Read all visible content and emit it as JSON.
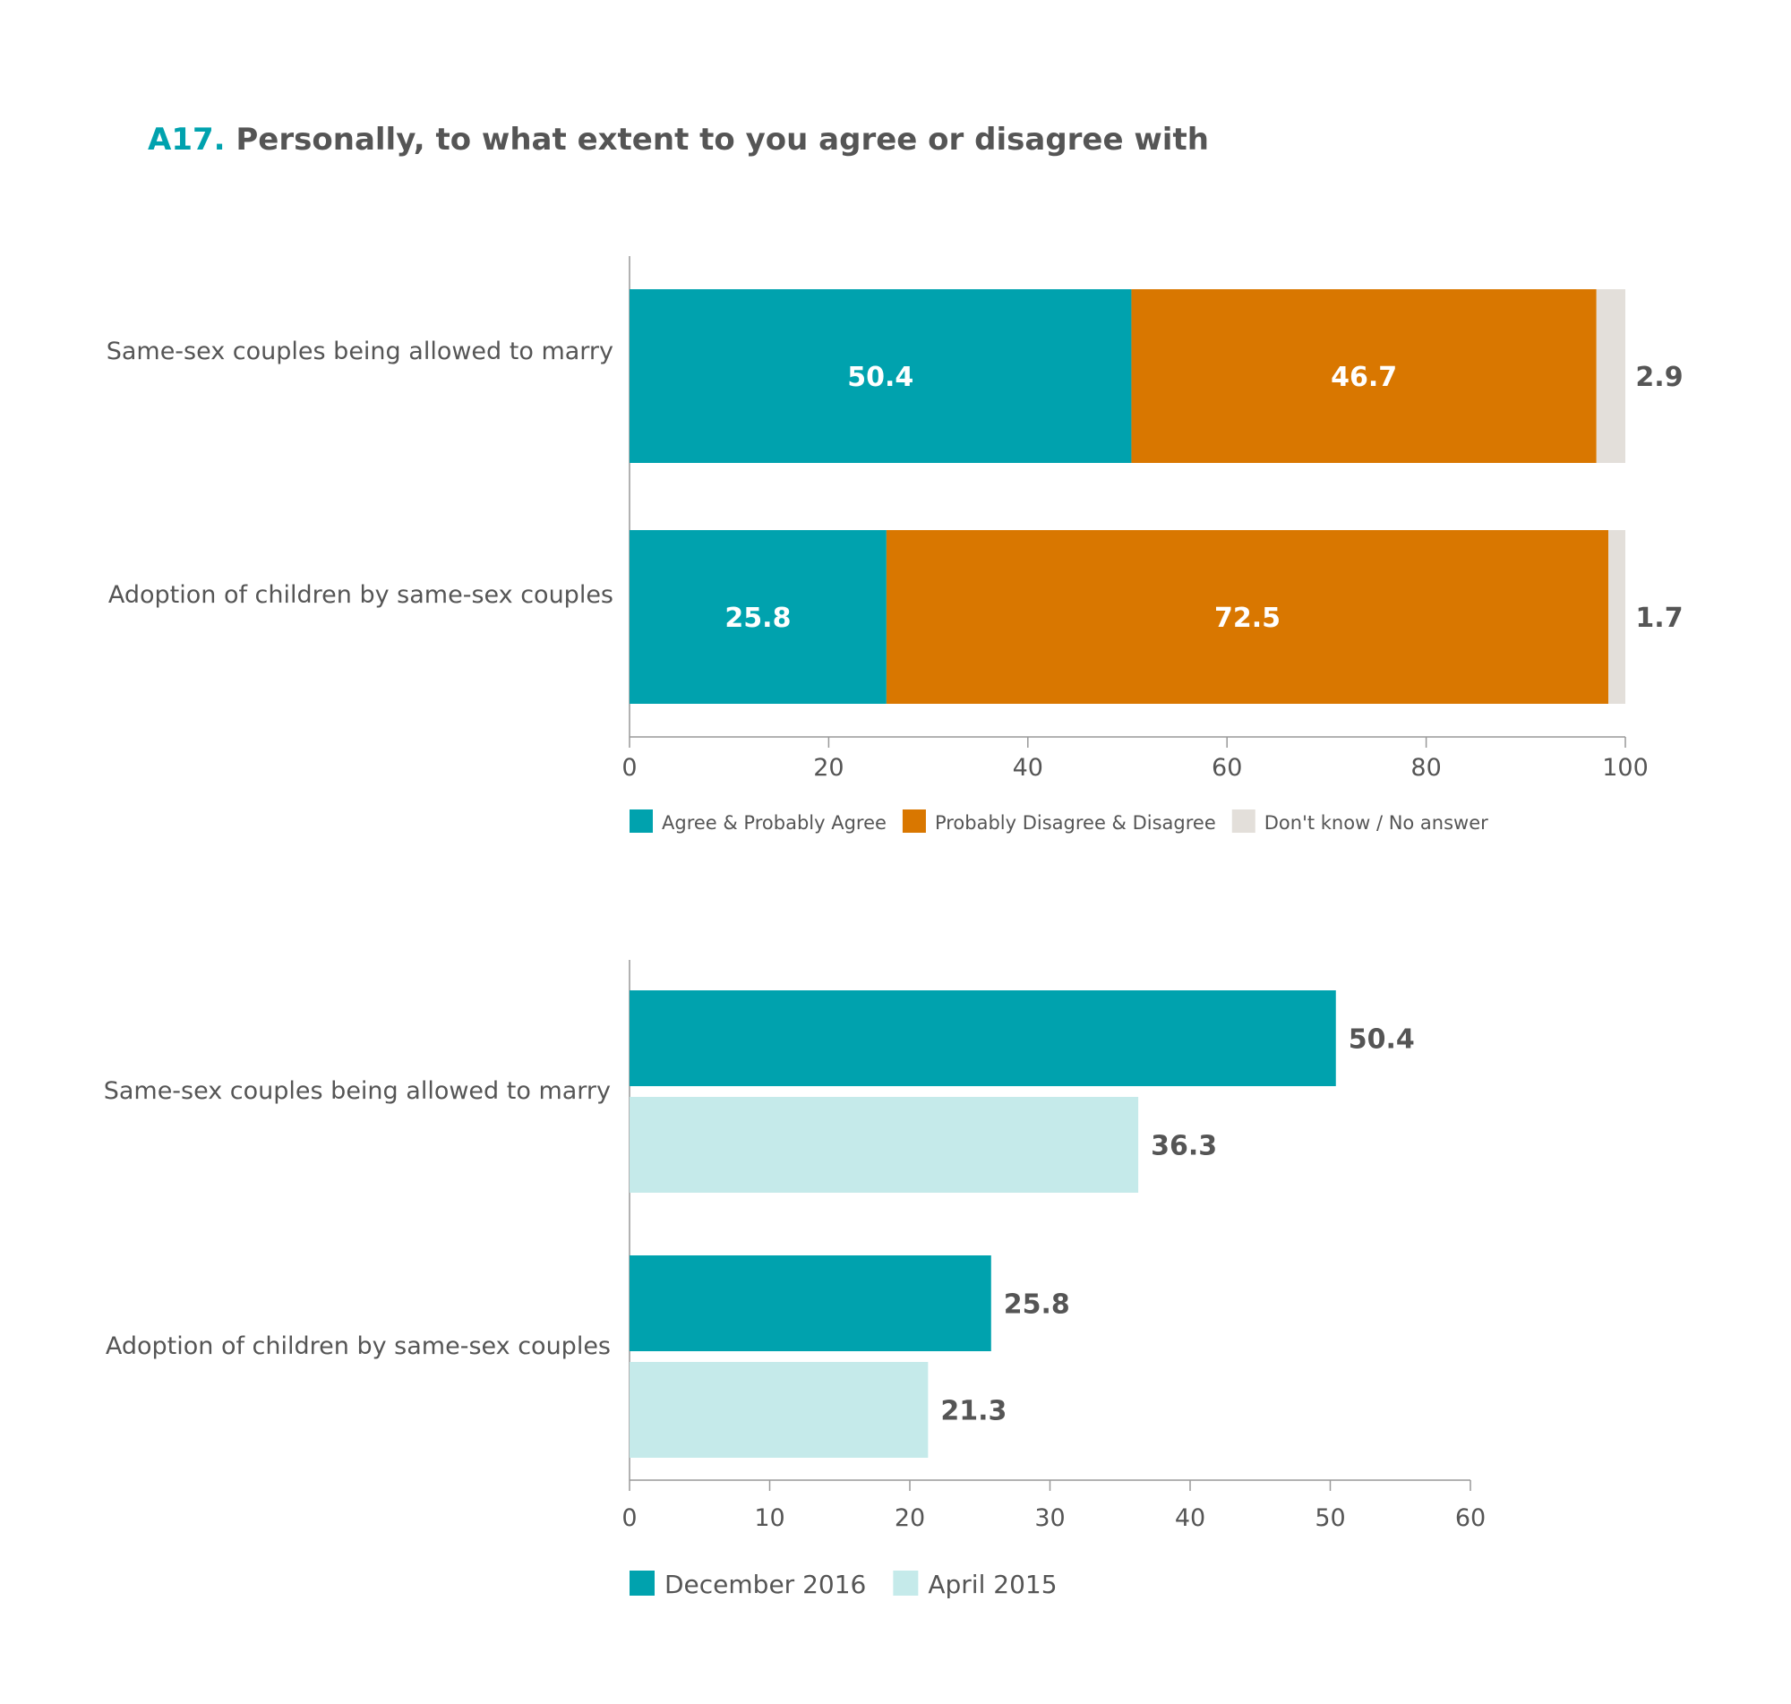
{
  "title": {
    "number": "A17.",
    "text": "Personally, to what extent to you agree or disagree with"
  },
  "colors": {
    "agree": "#00a2ae",
    "disagree": "#d97700",
    "dont_know": "#e3dfda",
    "dec_2016": "#00a2ae",
    "apr_2015": "#c5eaea",
    "axis": "#999999"
  },
  "chart_data": [
    {
      "type": "bar",
      "orientation": "horizontal",
      "stacked": true,
      "categories": [
        "Same-sex couples being allowed to marry",
        "Adoption of children by same-sex couples"
      ],
      "series": [
        {
          "name": "Agree & Probably Agree",
          "values": [
            50.4,
            25.8
          ]
        },
        {
          "name": "Probably Disagree & Disagree",
          "values": [
            46.7,
            72.5
          ]
        },
        {
          "name": "Don't know / No answer",
          "values": [
            2.9,
            1.7
          ]
        }
      ],
      "xlim": [
        0,
        100
      ],
      "xticks": [
        "0",
        "20",
        "40",
        "60",
        "80",
        "100"
      ],
      "legend": "bottom"
    },
    {
      "type": "bar",
      "orientation": "horizontal",
      "stacked": false,
      "categories": [
        "Same-sex couples being allowed to marry",
        "Adoption of children by same-sex couples"
      ],
      "series": [
        {
          "name": "December 2016",
          "values": [
            50.4,
            25.8
          ]
        },
        {
          "name": "April 2015",
          "values": [
            36.3,
            21.3
          ]
        }
      ],
      "xlim": [
        0,
        60
      ],
      "xticks": [
        "0",
        "10",
        "20",
        "30",
        "40",
        "50",
        "60"
      ],
      "legend": "bottom"
    }
  ]
}
